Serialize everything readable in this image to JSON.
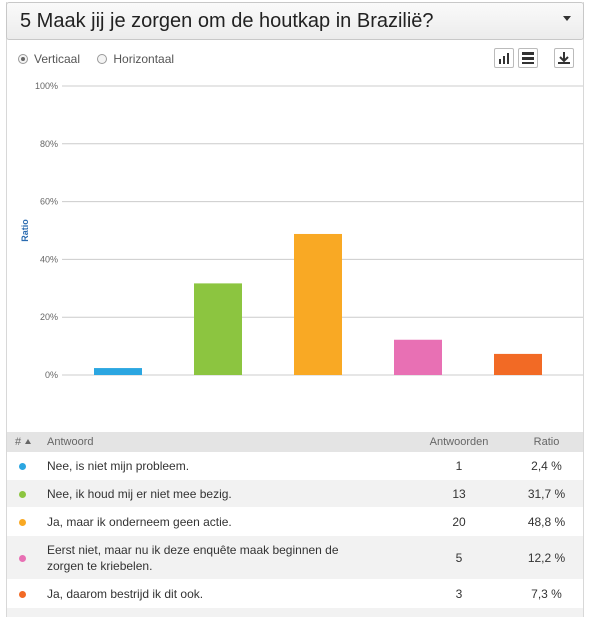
{
  "header": {
    "title": "5 Maak jij je zorgen om de houtkap in Brazilië?"
  },
  "view_options": [
    "Verticaal",
    "Horizontaal"
  ],
  "chart_data": {
    "type": "bar",
    "ylabel": "Ratio",
    "values": [
      2.4,
      31.7,
      48.8,
      12.2,
      7.3
    ],
    "colors": [
      "#2ba6e1",
      "#8cc540",
      "#f9a924",
      "#e870b4",
      "#f26a25"
    ],
    "ylim": [
      0,
      100
    ],
    "yticks": [
      {
        "value": 0,
        "label": "0%"
      },
      {
        "value": 20,
        "label": "20%"
      },
      {
        "value": 40,
        "label": "40%"
      },
      {
        "value": 60,
        "label": "60%"
      },
      {
        "value": 80,
        "label": "80%"
      },
      {
        "value": 100,
        "label": "100%"
      }
    ],
    "grid": true
  },
  "table": {
    "columns": [
      "#",
      "Antwoord",
      "Antwoorden",
      "Ratio"
    ],
    "rows": [
      [
        "Nee, is niet mijn probleem.",
        1,
        "2,4 %"
      ],
      [
        "Nee, ik houd mij er niet mee bezig.",
        13,
        "31,7 %"
      ],
      [
        "Ja, maar ik onderneem geen actie.",
        20,
        "48,8 %"
      ],
      [
        "Eerst niet, maar nu ik deze enquête maak beginnen de zorgen te kriebelen.",
        5,
        "12,2 %"
      ],
      [
        "Ja, daarom bestrijd ik dit ook.",
        3,
        "7,3 %"
      ]
    ]
  }
}
